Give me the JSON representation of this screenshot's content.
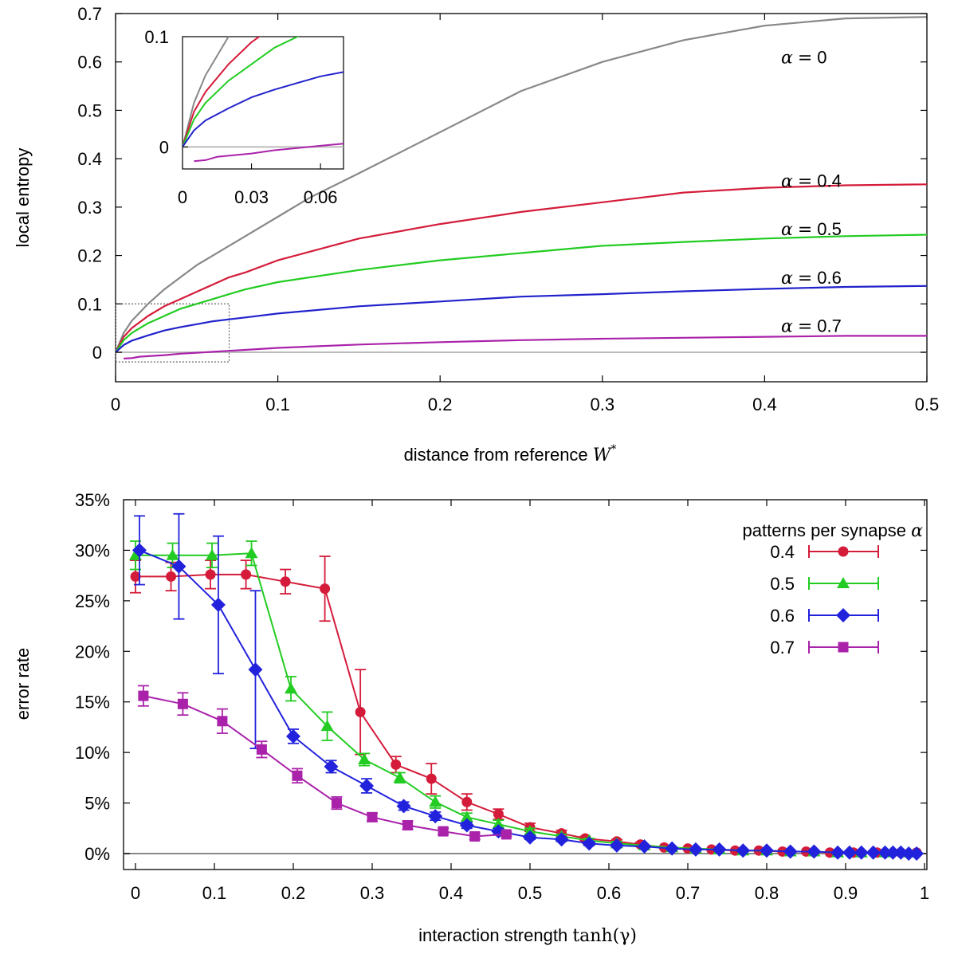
{
  "chart_data": [
    {
      "type": "line",
      "xlabel": "distance from reference",
      "xlabel_symbol": "W",
      "xlabel_sup": "*",
      "ylabel": "local entropy",
      "xlim": [
        0,
        0.5
      ],
      "ylim": [
        -0.05,
        0.7
      ],
      "xticks": [
        "0",
        "0.1",
        "0.2",
        "0.3",
        "0.4",
        "0.5"
      ],
      "yticks": [
        "0",
        "0.1",
        "0.2",
        "0.3",
        "0.4",
        "0.5",
        "0.6",
        "0.7"
      ],
      "grid": false,
      "series": [
        {
          "name": "α = 0",
          "label_symbol": "α",
          "label_eq": "=",
          "label_val": "0",
          "color": "#888888",
          "x": [
            0,
            0.005,
            0.01,
            0.02,
            0.03,
            0.04,
            0.05,
            0.06,
            0.07,
            0.08,
            0.1,
            0.12,
            0.15,
            0.2,
            0.25,
            0.3,
            0.35,
            0.4,
            0.45,
            0.5
          ],
          "y": [
            0,
            0.04,
            0.065,
            0.1,
            0.13,
            0.155,
            0.18,
            0.2,
            0.22,
            0.24,
            0.28,
            0.32,
            0.37,
            0.455,
            0.54,
            0.6,
            0.645,
            0.675,
            0.69,
            0.693
          ]
        },
        {
          "name": "α = 0.4",
          "label_symbol": "α",
          "label_eq": "=",
          "label_val": "0.4",
          "color": "#d41c3a",
          "x": [
            0,
            0.005,
            0.01,
            0.02,
            0.03,
            0.04,
            0.05,
            0.06,
            0.07,
            0.08,
            0.1,
            0.15,
            0.2,
            0.25,
            0.3,
            0.35,
            0.4,
            0.45,
            0.5
          ],
          "y": [
            0,
            0.032,
            0.05,
            0.075,
            0.095,
            0.11,
            0.125,
            0.14,
            0.155,
            0.165,
            0.19,
            0.235,
            0.265,
            0.29,
            0.31,
            0.33,
            0.34,
            0.345,
            0.347
          ]
        },
        {
          "name": "α = 0.5",
          "label_symbol": "α",
          "label_eq": "=",
          "label_val": "0.5",
          "color": "#22cc22",
          "x": [
            0,
            0.005,
            0.01,
            0.02,
            0.03,
            0.04,
            0.05,
            0.06,
            0.07,
            0.08,
            0.1,
            0.15,
            0.2,
            0.25,
            0.3,
            0.35,
            0.4,
            0.45,
            0.5
          ],
          "y": [
            0,
            0.025,
            0.04,
            0.06,
            0.075,
            0.09,
            0.1,
            0.11,
            0.12,
            0.13,
            0.145,
            0.17,
            0.19,
            0.205,
            0.22,
            0.228,
            0.235,
            0.24,
            0.243
          ]
        },
        {
          "name": "α = 0.6",
          "label_symbol": "α",
          "label_eq": "=",
          "label_val": "0.6",
          "color": "#2222cc",
          "x": [
            0,
            0.005,
            0.01,
            0.02,
            0.03,
            0.04,
            0.05,
            0.06,
            0.07,
            0.08,
            0.1,
            0.15,
            0.2,
            0.25,
            0.3,
            0.35,
            0.4,
            0.45,
            0.5
          ],
          "y": [
            0,
            0.015,
            0.024,
            0.035,
            0.045,
            0.052,
            0.058,
            0.064,
            0.068,
            0.072,
            0.08,
            0.095,
            0.105,
            0.115,
            0.12,
            0.126,
            0.131,
            0.135,
            0.137
          ]
        },
        {
          "name": "α = 0.7",
          "label_symbol": "α",
          "label_eq": "=",
          "label_val": "0.7",
          "color": "#aa22aa",
          "x": [
            0.005,
            0.01,
            0.015,
            0.02,
            0.03,
            0.04,
            0.05,
            0.06,
            0.07,
            0.08,
            0.1,
            0.15,
            0.2,
            0.25,
            0.3,
            0.35,
            0.4,
            0.45,
            0.5
          ],
          "y": [
            -0.013,
            -0.012,
            -0.009,
            -0.008,
            -0.006,
            -0.003,
            -0.001,
            0.001,
            0.003,
            0.005,
            0.009,
            0.016,
            0.021,
            0.025,
            0.028,
            0.03,
            0.032,
            0.034,
            0.034
          ]
        }
      ],
      "baseline": {
        "y": 0,
        "color": "#bbbbbb"
      },
      "inset": {
        "xlim": [
          0,
          0.07
        ],
        "ylim": [
          -0.02,
          0.1
        ],
        "xticks": [
          "0",
          "0.03",
          "0.06"
        ],
        "yticks": [
          "0",
          "0.1"
        ]
      }
    },
    {
      "type": "line",
      "xlabel": "interaction strength",
      "xlabel_math": "tanh(γ)",
      "ylabel": "error rate",
      "xlim": [
        0,
        1
      ],
      "ylim": [
        0,
        0.35
      ],
      "xticks": [
        "0",
        "0.1",
        "0.2",
        "0.3",
        "0.4",
        "0.5",
        "0.6",
        "0.7",
        "0.8",
        "0.9",
        "1"
      ],
      "yticks": [
        "0%",
        "5%",
        "10%",
        "15%",
        "20%",
        "25%",
        "30%",
        "35%"
      ],
      "grid": false,
      "legend_title": "patterns per synapse",
      "legend_title_symbol": "α",
      "legend_position": "top-right",
      "series": [
        {
          "name": "0.4",
          "color": "#d41c3a",
          "marker": "circle",
          "x": [
            0,
            0.045,
            0.095,
            0.14,
            0.19,
            0.24,
            0.285,
            0.33,
            0.375,
            0.42,
            0.46,
            0.5,
            0.54,
            0.57,
            0.61,
            0.64,
            0.67,
            0.7,
            0.73,
            0.76,
            0.79,
            0.82,
            0.85,
            0.88,
            0.91,
            0.94,
            0.97,
            0.99
          ],
          "y": [
            0.274,
            0.274,
            0.276,
            0.276,
            0.269,
            0.262,
            0.14,
            0.088,
            0.074,
            0.051,
            0.039,
            0.026,
            0.02,
            0.015,
            0.012,
            0.009,
            0.006,
            0.005,
            0.004,
            0.003,
            0.003,
            0.002,
            0.002,
            0.001,
            0.001,
            0.001,
            0.001,
            0.001
          ],
          "err": [
            0.016,
            0.014,
            0.014,
            0.014,
            0.012,
            0.032,
            0.042,
            0.008,
            0.015,
            0.008,
            0.005,
            0.004,
            0.003,
            0.002,
            0.002,
            0.002,
            0.001,
            0.001,
            0.001,
            0.001,
            0.001,
            0.001,
            0.001,
            0,
            0,
            0,
            0,
            0
          ]
        },
        {
          "name": "0.5",
          "color": "#22cc22",
          "marker": "triangle",
          "x": [
            0,
            0.047,
            0.097,
            0.147,
            0.197,
            0.243,
            0.29,
            0.335,
            0.38,
            0.42,
            0.46,
            0.5,
            0.54,
            0.575,
            0.61,
            0.645,
            0.68,
            0.71,
            0.74,
            0.77,
            0.8,
            0.83,
            0.86,
            0.89,
            0.92,
            0.95,
            0.98
          ],
          "y": [
            0.295,
            0.295,
            0.295,
            0.297,
            0.163,
            0.126,
            0.093,
            0.075,
            0.051,
            0.036,
            0.029,
            0.022,
            0.017,
            0.013,
            0.01,
            0.008,
            0.006,
            0.005,
            0.004,
            0.003,
            0.003,
            0.002,
            0.002,
            0.001,
            0.001,
            0.001,
            0.001
          ],
          "err": [
            0.014,
            0.012,
            0.012,
            0.012,
            0.012,
            0.014,
            0.006,
            0.005,
            0.006,
            0.004,
            0.004,
            0.003,
            0.002,
            0.002,
            0.002,
            0.001,
            0.001,
            0.001,
            0.001,
            0.001,
            0.001,
            0.001,
            0,
            0,
            0,
            0,
            0
          ]
        },
        {
          "name": "0.6",
          "color": "#2222dd",
          "marker": "diamond",
          "x": [
            0.005,
            0.055,
            0.105,
            0.152,
            0.2,
            0.248,
            0.293,
            0.34,
            0.38,
            0.42,
            0.46,
            0.5,
            0.54,
            0.575,
            0.61,
            0.645,
            0.68,
            0.71,
            0.74,
            0.77,
            0.8,
            0.83,
            0.86,
            0.89,
            0.905,
            0.92,
            0.935,
            0.95,
            0.96,
            0.97,
            0.98,
            0.99
          ],
          "y": [
            0.3,
            0.284,
            0.246,
            0.182,
            0.116,
            0.086,
            0.067,
            0.047,
            0.037,
            0.028,
            0.022,
            0.016,
            0.014,
            0.01,
            0.008,
            0.007,
            0.005,
            0.004,
            0.004,
            0.003,
            0.003,
            0.002,
            0.002,
            0.001,
            0.001,
            0.001,
            0.001,
            0.001,
            0.001,
            0.001,
            0,
            0
          ],
          "err": [
            0.034,
            0.052,
            0.068,
            0.078,
            0.007,
            0.006,
            0.007,
            0.004,
            0.004,
            0.003,
            0.003,
            0.002,
            0.002,
            0.002,
            0.001,
            0.001,
            0.001,
            0.001,
            0.001,
            0.001,
            0,
            0,
            0,
            0,
            0,
            0,
            0,
            0,
            0,
            0,
            0,
            0
          ]
        },
        {
          "name": "0.7",
          "color": "#aa22aa",
          "marker": "square",
          "x": [
            0.01,
            0.06,
            0.11,
            0.16,
            0.205,
            0.255,
            0.3,
            0.345,
            0.39,
            0.43,
            0.47
          ],
          "y": [
            0.156,
            0.148,
            0.131,
            0.103,
            0.077,
            0.05,
            0.036,
            0.028,
            0.022,
            0.017,
            0.019
          ],
          "err": [
            0.01,
            0.011,
            0.012,
            0.008,
            0.007,
            0.006,
            0.004,
            0.004,
            0.003,
            0.003,
            0.002
          ]
        }
      ],
      "baseline": {
        "y": 0,
        "color": "#888888"
      }
    }
  ]
}
